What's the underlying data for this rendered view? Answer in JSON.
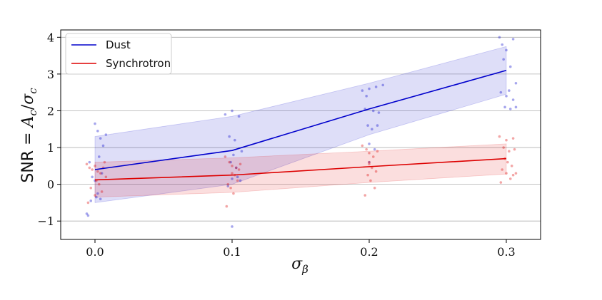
{
  "chart_data": {
    "type": "line",
    "title": "",
    "xlabel": "σ_β",
    "xlabel_display": "σ",
    "xlabel_sub": "β",
    "ylabel": "SNR = A_c/σ_c",
    "ylabel_parts": {
      "prefix": "SNR = ",
      "num": "A",
      "num_sub": "c",
      "slash": "/",
      "den": "σ",
      "den_sub": "c"
    },
    "xlim": [
      -0.025,
      0.325
    ],
    "ylim": [
      -1.5,
      4.2
    ],
    "xticks": [
      0.0,
      0.1,
      0.2,
      0.3
    ],
    "xtick_labels": [
      "0.0",
      "0.1",
      "0.2",
      "0.3"
    ],
    "yticks": [
      -1,
      0,
      1,
      2,
      3,
      4
    ],
    "ytick_labels": [
      "−1",
      "0",
      "1",
      "2",
      "3",
      "4"
    ],
    "grid": "horizontal",
    "legend_position": "top-left",
    "series": [
      {
        "name": "Dust",
        "color": "#0000cc",
        "x": [
          0.0,
          0.1,
          0.2,
          0.3
        ],
        "mean": [
          0.4,
          0.92,
          2.05,
          3.1
        ],
        "band_upper": [
          1.3,
          1.85,
          2.75,
          3.75
        ],
        "band_lower": [
          -0.5,
          0.0,
          1.35,
          2.45
        ],
        "scatter": [
          [
            0.0,
            1.65
          ],
          [
            0.002,
            1.45
          ],
          [
            0.004,
            1.25
          ],
          [
            0.006,
            1.05
          ],
          [
            0.008,
            1.35
          ],
          [
            0.003,
            0.75
          ],
          [
            0.005,
            0.3
          ],
          [
            0.0,
            0.1
          ],
          [
            0.002,
            -0.25
          ],
          [
            0.001,
            -0.35
          ],
          [
            -0.003,
            -0.45
          ],
          [
            0.004,
            -0.4
          ],
          [
            -0.005,
            -0.85
          ],
          [
            -0.006,
            -0.8
          ],
          [
            -0.004,
            0.6
          ],
          [
            -0.002,
            0.2
          ],
          [
            0.095,
            1.9
          ],
          [
            0.1,
            2.0
          ],
          [
            0.105,
            1.85
          ],
          [
            0.098,
            1.3
          ],
          [
            0.102,
            1.2
          ],
          [
            0.107,
            0.9
          ],
          [
            0.099,
            0.6
          ],
          [
            0.103,
            0.45
          ],
          [
            0.1,
            0.15
          ],
          [
            0.106,
            0.1
          ],
          [
            0.097,
            -0.05
          ],
          [
            0.104,
            0.2
          ],
          [
            0.1,
            -1.15
          ],
          [
            0.101,
            0.8
          ],
          [
            0.195,
            2.55
          ],
          [
            0.198,
            2.4
          ],
          [
            0.2,
            2.6
          ],
          [
            0.205,
            2.65
          ],
          [
            0.21,
            2.7
          ],
          [
            0.197,
            2.05
          ],
          [
            0.203,
            2.0
          ],
          [
            0.207,
            1.95
          ],
          [
            0.199,
            1.6
          ],
          [
            0.202,
            1.5
          ],
          [
            0.206,
            1.6
          ],
          [
            0.2,
            1.1
          ],
          [
            0.204,
            0.95
          ],
          [
            0.2,
            0.6
          ],
          [
            0.295,
            4.0
          ],
          [
            0.305,
            3.95
          ],
          [
            0.297,
            3.8
          ],
          [
            0.3,
            3.65
          ],
          [
            0.298,
            3.4
          ],
          [
            0.303,
            3.2
          ],
          [
            0.307,
            2.75
          ],
          [
            0.296,
            2.5
          ],
          [
            0.3,
            2.4
          ],
          [
            0.302,
            2.55
          ],
          [
            0.305,
            2.3
          ],
          [
            0.299,
            2.1
          ],
          [
            0.303,
            2.05
          ],
          [
            0.307,
            2.1
          ]
        ]
      },
      {
        "name": "Synchrotron",
        "color": "#dd0000",
        "x": [
          0.0,
          0.1,
          0.2,
          0.3
        ],
        "mean": [
          0.12,
          0.25,
          0.48,
          0.7
        ],
        "band_upper": [
          0.6,
          0.72,
          0.9,
          1.1
        ],
        "band_lower": [
          -0.35,
          -0.22,
          0.05,
          0.28
        ],
        "scatter": [
          [
            -0.006,
            0.55
          ],
          [
            -0.004,
            0.45
          ],
          [
            -0.002,
            0.4
          ],
          [
            0.0,
            0.5
          ],
          [
            0.002,
            0.35
          ],
          [
            0.004,
            0.3
          ],
          [
            0.006,
            0.45
          ],
          [
            0.008,
            0.2
          ],
          [
            0.001,
            0.1
          ],
          [
            0.003,
            0.0
          ],
          [
            -0.003,
            -0.1
          ],
          [
            0.005,
            -0.2
          ],
          [
            0.0,
            -0.3
          ],
          [
            -0.005,
            -0.5
          ],
          [
            0.007,
            0.6
          ],
          [
            0.095,
            0.75
          ],
          [
            0.098,
            0.6
          ],
          [
            0.1,
            0.5
          ],
          [
            0.103,
            0.45
          ],
          [
            0.106,
            0.55
          ],
          [
            0.1,
            0.3
          ],
          [
            0.102,
            0.25
          ],
          [
            0.104,
            0.1
          ],
          [
            0.097,
            0.0
          ],
          [
            0.099,
            -0.1
          ],
          [
            0.101,
            -0.25
          ],
          [
            0.096,
            -0.6
          ],
          [
            0.105,
            0.4
          ],
          [
            0.195,
            1.05
          ],
          [
            0.198,
            0.95
          ],
          [
            0.2,
            0.85
          ],
          [
            0.203,
            0.75
          ],
          [
            0.206,
            0.9
          ],
          [
            0.2,
            0.55
          ],
          [
            0.202,
            0.45
          ],
          [
            0.205,
            0.35
          ],
          [
            0.199,
            0.25
          ],
          [
            0.201,
            0.1
          ],
          [
            0.204,
            -0.1
          ],
          [
            0.197,
            -0.3
          ],
          [
            0.2,
            0.6
          ],
          [
            0.295,
            1.3
          ],
          [
            0.3,
            1.2
          ],
          [
            0.305,
            1.25
          ],
          [
            0.298,
            1.0
          ],
          [
            0.302,
            0.9
          ],
          [
            0.306,
            0.95
          ],
          [
            0.299,
            0.7
          ],
          [
            0.301,
            0.6
          ],
          [
            0.304,
            0.5
          ],
          [
            0.297,
            0.4
          ],
          [
            0.3,
            0.3
          ],
          [
            0.303,
            0.15
          ],
          [
            0.305,
            0.25
          ],
          [
            0.296,
            0.05
          ],
          [
            0.307,
            0.3
          ]
        ]
      }
    ]
  }
}
